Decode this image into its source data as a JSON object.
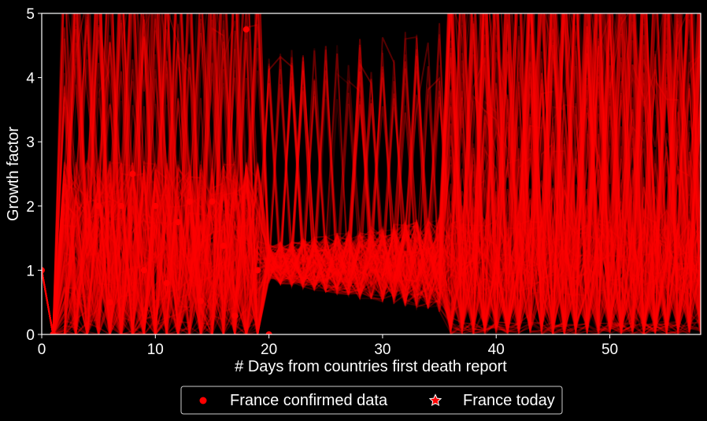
{
  "chart_data": {
    "type": "scatter",
    "title": "",
    "xlabel": "# Days from countries first death report",
    "ylabel": "Growth factor",
    "xlim": [
      0,
      58
    ],
    "ylim": [
      0,
      5
    ],
    "xticks": [
      0,
      10,
      20,
      30,
      40,
      50
    ],
    "yticks": [
      0,
      1,
      2,
      3,
      4,
      5
    ],
    "grid": false,
    "background": "#000000",
    "line_color": "#ff0000",
    "legend_position": "bottom-center",
    "series": [
      {
        "name": "France confirmed data",
        "marker": "circle",
        "color": "#ff0000",
        "x": [
          0,
          1,
          5,
          6,
          7,
          8,
          9,
          10,
          11,
          12,
          13,
          14,
          15,
          16,
          17,
          18,
          19,
          20
        ],
        "y": [
          1.0,
          0.0,
          2.0,
          0.5,
          2.0,
          2.5,
          1.0,
          2.0,
          0.8,
          1.75,
          2.07,
          0.52,
          2.07,
          1.38,
          0.29,
          4.75,
          1.0,
          0.0
        ]
      },
      {
        "name": "France today",
        "marker": "star",
        "color": "#ff0000",
        "x": [],
        "y": []
      }
    ]
  }
}
